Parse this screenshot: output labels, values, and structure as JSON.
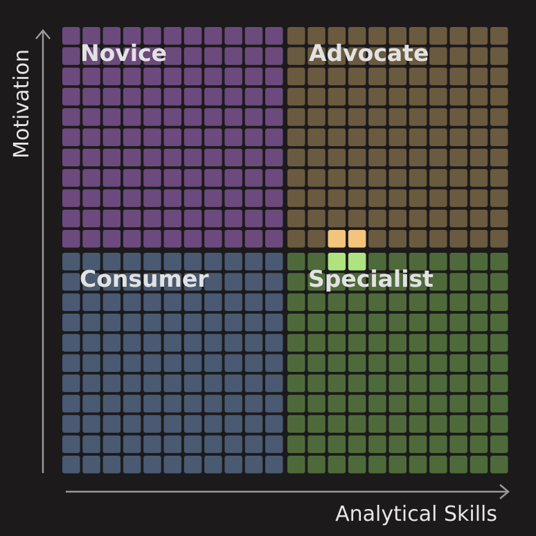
{
  "quadrants": [
    {
      "label": "Novice"
    },
    {
      "label": "Advocate"
    },
    {
      "label": "Consumer"
    },
    {
      "label": "Specialist"
    }
  ],
  "x_axis": {
    "label": "Analytical Skills"
  },
  "y_axis": {
    "label": "Motivation"
  }
}
